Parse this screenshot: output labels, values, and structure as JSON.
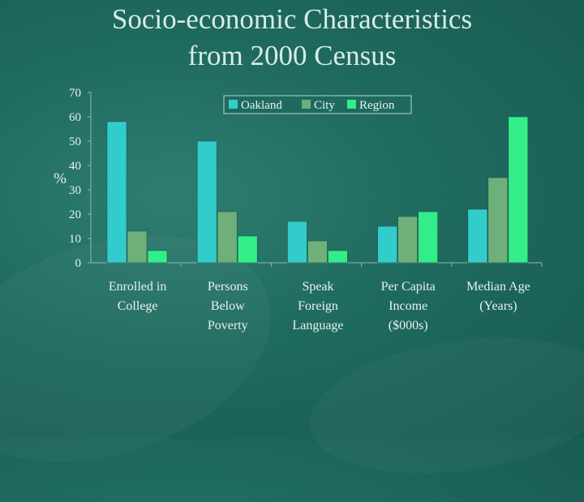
{
  "slide": {
    "title_line1": "Socio-economic Characteristics",
    "title_line2": "from 2000 Census"
  },
  "colors": {
    "background": "#1f6a5f",
    "axis_text": "#e6f2ee",
    "legend_bg": "#1f6a5f"
  },
  "chart_data": {
    "type": "bar",
    "ylabel": "%",
    "ylim": [
      0,
      70
    ],
    "yticks": [
      0,
      10,
      20,
      30,
      40,
      50,
      60,
      70
    ],
    "categories": [
      [
        "Enrolled in",
        "College"
      ],
      [
        "Persons",
        "Below",
        "Poverty"
      ],
      [
        "Speak",
        "Foreign",
        "Language"
      ],
      [
        "Per Capita",
        "Income",
        "($000s)"
      ],
      [
        "Median Age",
        "(Years)"
      ]
    ],
    "series": [
      {
        "name": "Oakland",
        "color": "#33cccc",
        "values": [
          58,
          50,
          17,
          15,
          22
        ]
      },
      {
        "name": "City",
        "color": "#6fb07a",
        "values": [
          13,
          21,
          9,
          19,
          35
        ]
      },
      {
        "name": "Region",
        "color": "#33ee88",
        "values": [
          5,
          11,
          5,
          21,
          60
        ]
      }
    ],
    "legend_position": "top-right",
    "grid": false
  }
}
